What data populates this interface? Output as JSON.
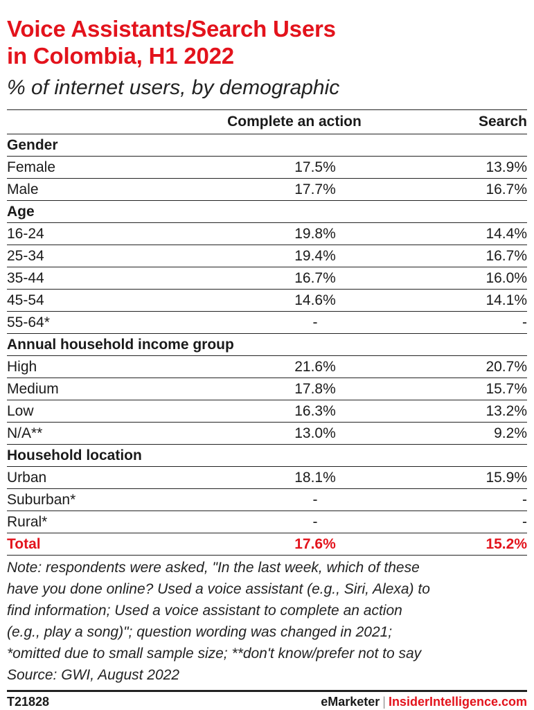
{
  "header": {
    "title_line1": "Voice Assistants/Search Users",
    "title_line2": "in Colombia, H1 2022",
    "subtitle": "% of internet users, by demographic"
  },
  "chart_data": {
    "type": "table",
    "columns": [
      "",
      "Complete an action",
      "Search"
    ],
    "rows": [
      {
        "label": "Gender",
        "group": true
      },
      {
        "label": "Female",
        "action": "17.5%",
        "search": "13.9%"
      },
      {
        "label": "Male",
        "action": "17.7%",
        "search": "16.7%"
      },
      {
        "label": "Age",
        "group": true
      },
      {
        "label": "16-24",
        "action": "19.8%",
        "search": "14.4%"
      },
      {
        "label": "25-34",
        "action": "19.4%",
        "search": "16.7%"
      },
      {
        "label": "35-44",
        "action": "16.7%",
        "search": "16.0%"
      },
      {
        "label": "45-54",
        "action": "14.6%",
        "search": "14.1%"
      },
      {
        "label": "55-64*",
        "action": "-",
        "search": "-"
      },
      {
        "label": "Annual household income group",
        "group": true
      },
      {
        "label": "High",
        "action": "21.6%",
        "search": "20.7%"
      },
      {
        "label": "Medium",
        "action": "17.8%",
        "search": "15.7%"
      },
      {
        "label": "Low",
        "action": "16.3%",
        "search": "13.2%"
      },
      {
        "label": "N/A**",
        "action": "13.0%",
        "search": "9.2%"
      },
      {
        "label": "Household location",
        "group": true
      },
      {
        "label": "Urban",
        "action": "18.1%",
        "search": "15.9%"
      },
      {
        "label": "Suburban*",
        "action": "-",
        "search": "-"
      },
      {
        "label": "Rural*",
        "action": "-",
        "search": "-"
      },
      {
        "label": "Total",
        "action": "17.6%",
        "search": "15.2%",
        "total": true
      }
    ]
  },
  "note": {
    "line1": "Note: respondents were asked, \"In the last week, which of these",
    "line2": "have you done online? Used a voice assistant (e.g., Siri, Alexa) to",
    "line3": "find information; Used a voice assistant to complete an action",
    "line4": "(e.g., play a song)\"; question wording was changed in 2021;",
    "line5": "*omitted due to small sample size; **don't know/prefer not to say",
    "line6": "Source: GWI, August 2022"
  },
  "footer": {
    "code": "T21828",
    "brand1": "eMarketer",
    "separator": "|",
    "brand2": "InsiderIntelligence.com"
  },
  "colors": {
    "accent": "#e3131c",
    "text": "#1a1a1a"
  }
}
